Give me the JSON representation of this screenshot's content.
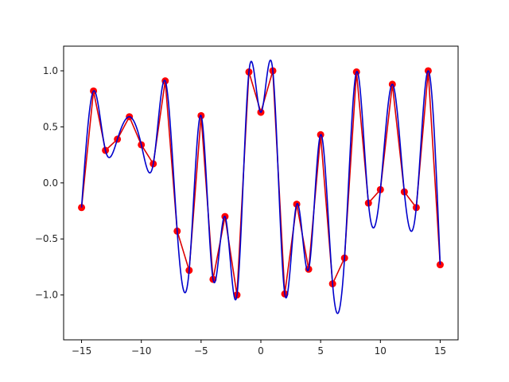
{
  "chart_data": {
    "type": "line",
    "title": "",
    "xlabel": "",
    "ylabel": "",
    "xlim": [
      -16.5,
      16.5
    ],
    "ylim": [
      -1.4,
      1.22
    ],
    "xticks": [
      -15,
      -10,
      -5,
      0,
      5,
      10,
      15
    ],
    "xtick_labels": [
      "−15",
      "−10",
      "−5",
      "0",
      "5",
      "10",
      "15"
    ],
    "yticks": [
      -1.0,
      -0.5,
      0.0,
      0.5,
      1.0
    ],
    "ytick_labels": [
      "−1.0",
      "−0.5",
      "0.0",
      "0.5",
      "1.0"
    ],
    "grid": false,
    "legend": "none",
    "colors": {
      "samples": "#ff0000",
      "linear": "#dd0000",
      "smooth": "#0000cc",
      "axes": "#000000"
    },
    "x": [
      -15,
      -14,
      -13,
      -12,
      -11,
      -10,
      -9,
      -8,
      -7,
      -6,
      -5,
      -4,
      -3,
      -2,
      -1,
      0,
      1,
      2,
      3,
      4,
      5,
      6,
      7,
      8,
      9,
      10,
      11,
      12,
      13,
      14,
      15
    ],
    "series": [
      {
        "style": "linear-with-markers",
        "values": [
          -0.22,
          0.82,
          0.29,
          0.39,
          0.59,
          0.34,
          0.17,
          0.91,
          -0.43,
          -0.78,
          0.6,
          -0.86,
          -0.3,
          -1.0,
          0.99,
          0.63,
          1.0,
          -0.99,
          -0.19,
          -0.77,
          0.43,
          -0.9,
          -0.67,
          0.99,
          -0.18,
          -0.06,
          0.88,
          -0.08,
          -0.22,
          1.0,
          -0.73
        ]
      },
      {
        "style": "smooth-interpolation",
        "values": [
          -0.22,
          0.82,
          0.29,
          0.39,
          0.59,
          0.34,
          0.17,
          0.91,
          -0.43,
          -0.78,
          0.6,
          -0.86,
          -0.3,
          -1.0,
          0.99,
          0.63,
          1.0,
          -0.99,
          -0.19,
          -0.77,
          0.43,
          -0.9,
          -0.67,
          0.99,
          -0.18,
          -0.06,
          0.88,
          -0.08,
          -0.22,
          1.0,
          -0.73
        ]
      }
    ]
  }
}
